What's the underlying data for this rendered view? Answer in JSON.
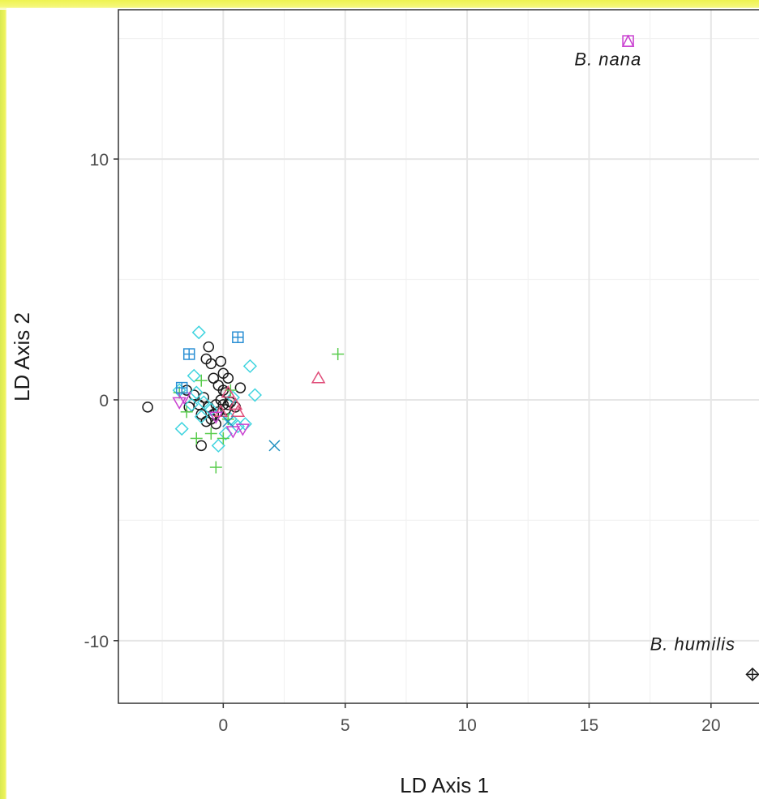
{
  "chart_data": {
    "type": "scatter",
    "xlabel": "LD Axis 1",
    "ylabel": "LD Axis 2",
    "xlim": [
      -4.3,
      22.3
    ],
    "ylim": [
      -12.6,
      16.2
    ],
    "x_ticks": [
      "0",
      "5",
      "10",
      "15",
      "20"
    ],
    "x_tick_values": [
      0,
      5,
      10,
      15,
      20
    ],
    "y_ticks": [
      "10",
      "0",
      "-10"
    ],
    "y_tick_values": [
      10,
      0,
      -10
    ],
    "grid": true,
    "annotations": [
      {
        "text": "B. nana",
        "x": 14.4,
        "y": 13.9
      },
      {
        "text": "B. humilis",
        "x": 17.5,
        "y": -10.4
      }
    ],
    "series": [
      {
        "shape": "circle",
        "color": "#1a1a1a",
        "points": [
          [
            -3.1,
            -0.3
          ],
          [
            -0.6,
            2.2
          ],
          [
            -0.7,
            1.7
          ],
          [
            -0.5,
            1.5
          ],
          [
            -0.1,
            1.6
          ],
          [
            -0.4,
            0.9
          ],
          [
            0.0,
            1.1
          ],
          [
            0.2,
            0.9
          ],
          [
            0.7,
            0.5
          ],
          [
            -0.2,
            0.6
          ],
          [
            0.1,
            0.3
          ],
          [
            -1.5,
            0.4
          ],
          [
            -1.2,
            0.2
          ],
          [
            -0.8,
            0.1
          ],
          [
            -1.0,
            -0.2
          ],
          [
            -0.6,
            -0.3
          ],
          [
            -0.3,
            -0.2
          ],
          [
            0.0,
            -0.2
          ],
          [
            0.3,
            -0.1
          ],
          [
            0.5,
            -0.3
          ],
          [
            -1.4,
            -0.3
          ],
          [
            -0.9,
            -0.6
          ],
          [
            -0.5,
            -0.8
          ],
          [
            -0.2,
            -0.5
          ],
          [
            0.1,
            -0.4
          ],
          [
            -0.7,
            -0.9
          ],
          [
            -0.3,
            -1.0
          ],
          [
            -0.9,
            -1.9
          ],
          [
            -0.1,
            0.0
          ],
          [
            0.2,
            -0.2
          ],
          [
            0.0,
            0.4
          ],
          [
            -0.4,
            -0.6
          ]
        ]
      },
      {
        "shape": "diamond",
        "color": "#3fd4df",
        "points": [
          [
            -1.0,
            2.8
          ],
          [
            1.1,
            1.4
          ],
          [
            1.3,
            0.2
          ],
          [
            -1.2,
            1.0
          ],
          [
            -1.8,
            0.4
          ],
          [
            -1.1,
            0.3
          ],
          [
            -0.8,
            -0.1
          ],
          [
            0.4,
            0.1
          ],
          [
            -1.7,
            -1.2
          ],
          [
            -0.9,
            -0.7
          ],
          [
            0.6,
            -1.1
          ],
          [
            0.9,
            -1.0
          ],
          [
            -0.2,
            -1.9
          ],
          [
            0.1,
            -1.4
          ],
          [
            0.3,
            -0.8
          ],
          [
            -0.5,
            -0.4
          ],
          [
            -1.3,
            -0.2
          ]
        ]
      },
      {
        "shape": "plus",
        "color": "#58cc4c",
        "points": [
          [
            4.7,
            1.9
          ],
          [
            -0.3,
            -2.8
          ],
          [
            -1.8,
            0.3
          ],
          [
            -1.5,
            -0.5
          ],
          [
            -0.5,
            -1.4
          ],
          [
            0.0,
            -1.6
          ],
          [
            0.2,
            -0.8
          ],
          [
            -0.9,
            0.8
          ],
          [
            0.3,
            0.4
          ],
          [
            -1.1,
            -1.6
          ]
        ]
      },
      {
        "shape": "triangle",
        "color": "#e04e7a",
        "points": [
          [
            3.9,
            0.9
          ],
          [
            0.2,
            0.3
          ],
          [
            -0.1,
            -0.5
          ],
          [
            0.6,
            -0.5
          ],
          [
            0.5,
            -0.2
          ]
        ]
      },
      {
        "shape": "triangle-down",
        "color": "#c93fd0",
        "points": [
          [
            -1.8,
            -0.1
          ],
          [
            -1.6,
            0.1
          ],
          [
            0.4,
            -1.3
          ],
          [
            0.8,
            -1.2
          ],
          [
            -0.3,
            -0.7
          ]
        ]
      },
      {
        "shape": "square-plus",
        "color": "#2a8fd4",
        "points": [
          [
            -1.4,
            1.9
          ],
          [
            0.6,
            2.6
          ],
          [
            -1.7,
            0.5
          ]
        ]
      },
      {
        "shape": "cross",
        "color": "#1f8fbf",
        "points": [
          [
            2.1,
            -1.9
          ],
          [
            0.2,
            -0.9
          ]
        ]
      },
      {
        "shape": "square-triangle",
        "color": "#c93fd0",
        "points": [
          [
            16.6,
            14.9
          ]
        ]
      },
      {
        "shape": "diamond-plus",
        "color": "#1a1a1a",
        "points": [
          [
            21.7,
            -11.4
          ]
        ]
      }
    ]
  }
}
